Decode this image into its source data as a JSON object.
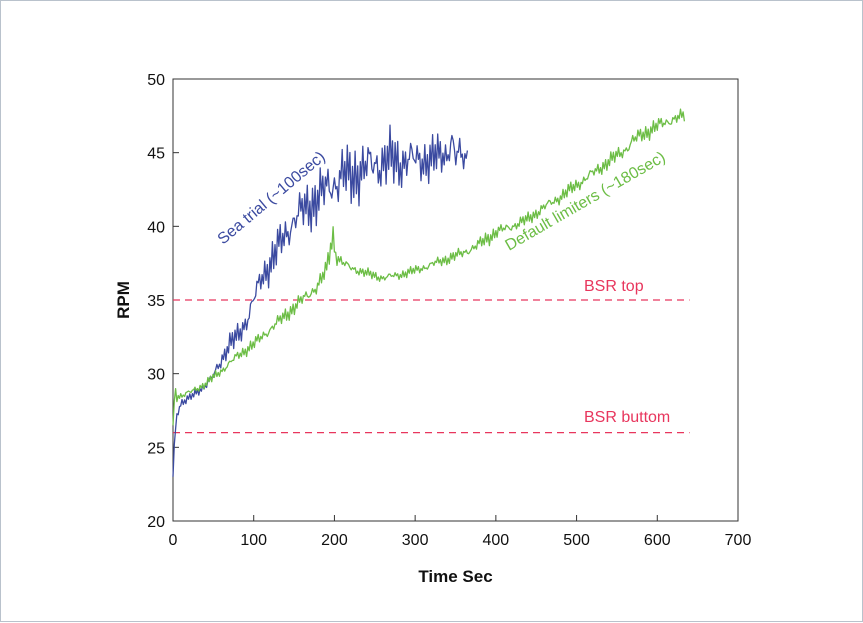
{
  "chart_data": {
    "type": "line",
    "title": "",
    "xlabel": "Time Sec",
    "ylabel": "RPM",
    "xlim": [
      0,
      700
    ],
    "ylim": [
      20,
      50
    ],
    "xticks": [
      0,
      100,
      200,
      300,
      400,
      500,
      600,
      700
    ],
    "yticks": [
      20,
      25,
      30,
      35,
      40,
      45,
      50
    ],
    "grid": false,
    "series": [
      {
        "name": "Sea trial (~100sec)",
        "color": "#3b4aa0",
        "x": [
          0,
          2,
          5,
          10,
          20,
          30,
          40,
          50,
          60,
          70,
          80,
          90,
          100,
          110,
          120,
          130,
          140,
          150,
          160,
          170,
          180,
          190,
          200,
          210,
          220,
          230,
          240,
          250,
          260,
          270,
          280,
          290,
          300,
          310,
          320,
          330,
          340,
          345,
          350,
          355,
          360,
          365
        ],
        "y": [
          23,
          25.5,
          27.5,
          28,
          28.3,
          28.8,
          29.2,
          29.8,
          31,
          32,
          32.5,
          33.5,
          35,
          36.5,
          37.5,
          38.5,
          39.5,
          40.5,
          41,
          41.5,
          42,
          42.5,
          43,
          43.5,
          43.3,
          43.8,
          44,
          44.2,
          44.4,
          44.5,
          44.3,
          44.6,
          44.4,
          44.6,
          44.5,
          44.8,
          45,
          46,
          44.5,
          45,
          44.5,
          45
        ],
        "amplitude": [
          0.5,
          0.8,
          0.6,
          0.4,
          0.3,
          0.3,
          0.4,
          0.5,
          0.7,
          0.8,
          0.9,
          1.0,
          1.1,
          1.2,
          1.4,
          1.5,
          1.6,
          1.7,
          1.8,
          1.9,
          2.0,
          2.1,
          2.2,
          2.3,
          2.2,
          2.3,
          2.2,
          2.3,
          2.2,
          2.1,
          2.0,
          2.0,
          1.9,
          1.8,
          1.7,
          1.6,
          1.5,
          1.8,
          1.6,
          1.2,
          0.8,
          0.3
        ]
      },
      {
        "name": "Default limiters (~180sec)",
        "color": "#6cbd45",
        "x": [
          0,
          2,
          5,
          10,
          20,
          40,
          60,
          80,
          100,
          120,
          140,
          160,
          180,
          190,
          198,
          202,
          210,
          220,
          240,
          260,
          280,
          300,
          320,
          340,
          360,
          380,
          390,
          400,
          420,
          440,
          460,
          480,
          500,
          520,
          540,
          560,
          570,
          580,
          600,
          620,
          635
        ],
        "y": [
          26,
          29,
          28.5,
          28.5,
          28.7,
          29.3,
          30.2,
          31.2,
          32,
          33,
          34,
          35,
          36,
          37,
          39.5,
          38,
          37.5,
          37.2,
          36.8,
          36.5,
          36.7,
          37,
          37.4,
          37.8,
          38.2,
          38.8,
          39.2,
          39.6,
          40,
          40.5,
          41.3,
          42,
          42.8,
          43.6,
          44.4,
          45.2,
          45.8,
          46.2,
          46.8,
          47.3,
          47.5
        ],
        "amplitude": [
          0.6,
          0.7,
          0.4,
          0.3,
          0.3,
          0.3,
          0.35,
          0.4,
          0.45,
          0.5,
          0.55,
          0.6,
          0.65,
          0.7,
          1.0,
          0.6,
          0.45,
          0.4,
          0.35,
          0.35,
          0.35,
          0.35,
          0.4,
          0.4,
          0.45,
          0.5,
          0.55,
          0.5,
          0.45,
          0.45,
          0.5,
          0.5,
          0.5,
          0.55,
          0.55,
          0.6,
          0.7,
          0.6,
          0.6,
          0.55,
          0.5
        ]
      }
    ],
    "reference_lines": [
      {
        "label": "BSR top",
        "y": 35,
        "x_range": [
          0,
          640
        ],
        "color": "#e8365d"
      },
      {
        "label": "BSR buttom",
        "y": 26,
        "x_range": [
          0,
          640
        ],
        "color": "#e8365d"
      }
    ]
  }
}
